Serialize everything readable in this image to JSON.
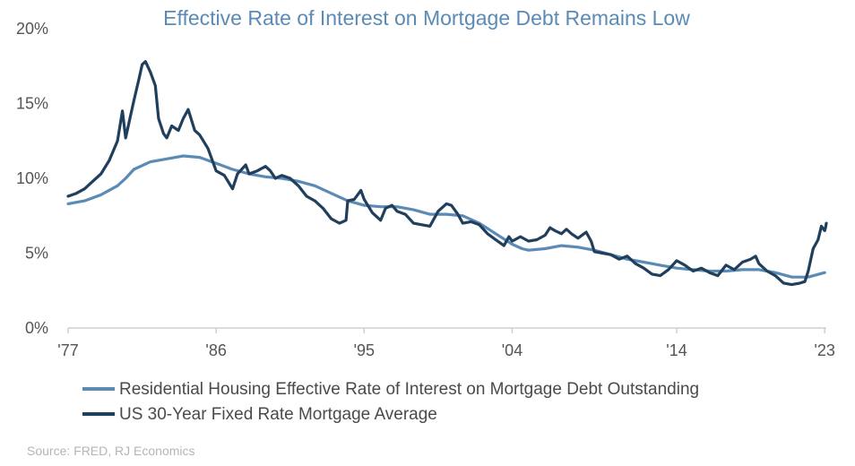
{
  "chart_data": {
    "type": "line",
    "title": "Effective Rate of Interest on Mortgage Debt Remains Low",
    "xlabel": "",
    "ylabel": "",
    "xlim": [
      1977,
      2023.1
    ],
    "ylim": [
      0,
      20
    ],
    "x_ticks": [
      {
        "value": 1977,
        "label": "'77"
      },
      {
        "value": 1986,
        "label": "'86"
      },
      {
        "value": 1995,
        "label": "'95"
      },
      {
        "value": 2004,
        "label": "'04"
      },
      {
        "value": 2014,
        "label": "'14"
      },
      {
        "value": 2023,
        "label": "'23"
      }
    ],
    "y_ticks": [
      {
        "value": 0,
        "label": "0%"
      },
      {
        "value": 5,
        "label": "5%"
      },
      {
        "value": 10,
        "label": "10%"
      },
      {
        "value": 15,
        "label": "15%"
      },
      {
        "value": 20,
        "label": "20%"
      }
    ],
    "grid": false,
    "legend_position": "bottom-left",
    "series": [
      {
        "name": "Residential Housing Effective Rate of Interest on Mortgage Debt Outstanding",
        "color": "#5b8bb5",
        "points": [
          [
            1977,
            8.3
          ],
          [
            1978,
            8.5
          ],
          [
            1979,
            8.9
          ],
          [
            1980,
            9.5
          ],
          [
            1980.5,
            10.0
          ],
          [
            1981,
            10.6
          ],
          [
            1982,
            11.1
          ],
          [
            1983,
            11.3
          ],
          [
            1984,
            11.5
          ],
          [
            1985,
            11.4
          ],
          [
            1986,
            11.0
          ],
          [
            1987,
            10.6
          ],
          [
            1988,
            10.3
          ],
          [
            1989,
            10.1
          ],
          [
            1990,
            10.0
          ],
          [
            1991,
            9.8
          ],
          [
            1992,
            9.5
          ],
          [
            1993,
            9.0
          ],
          [
            1994,
            8.5
          ],
          [
            1995,
            8.2
          ],
          [
            1996,
            8.1
          ],
          [
            1997,
            8.1
          ],
          [
            1998,
            7.9
          ],
          [
            1999,
            7.6
          ],
          [
            2000,
            7.6
          ],
          [
            2001,
            7.5
          ],
          [
            2002,
            7.0
          ],
          [
            2003,
            6.3
          ],
          [
            2004,
            5.6
          ],
          [
            2004.6,
            5.3
          ],
          [
            2005,
            5.2
          ],
          [
            2006,
            5.3
          ],
          [
            2007,
            5.5
          ],
          [
            2008,
            5.4
          ],
          [
            2009,
            5.2
          ],
          [
            2010,
            4.9
          ],
          [
            2011,
            4.6
          ],
          [
            2012,
            4.4
          ],
          [
            2013,
            4.2
          ],
          [
            2014,
            4.0
          ],
          [
            2015,
            3.9
          ],
          [
            2016,
            3.8
          ],
          [
            2017,
            3.8
          ],
          [
            2018,
            3.9
          ],
          [
            2019,
            3.9
          ],
          [
            2020,
            3.7
          ],
          [
            2021,
            3.4
          ],
          [
            2022,
            3.4
          ],
          [
            2023,
            3.7
          ]
        ]
      },
      {
        "name": "US 30-Year Fixed Rate Mortgage Average",
        "color": "#203f5c",
        "points": [
          [
            1977,
            8.8
          ],
          [
            1977.5,
            9.0
          ],
          [
            1978,
            9.3
          ],
          [
            1978.5,
            9.8
          ],
          [
            1979,
            10.3
          ],
          [
            1979.5,
            11.2
          ],
          [
            1980,
            12.5
          ],
          [
            1980.3,
            14.5
          ],
          [
            1980.5,
            12.7
          ],
          [
            1980.8,
            14.2
          ],
          [
            1981,
            15.2
          ],
          [
            1981.3,
            16.6
          ],
          [
            1981.5,
            17.6
          ],
          [
            1981.7,
            17.8
          ],
          [
            1982,
            17.1
          ],
          [
            1982.3,
            16.2
          ],
          [
            1982.5,
            14.0
          ],
          [
            1982.8,
            13.0
          ],
          [
            1983,
            12.7
          ],
          [
            1983.3,
            13.5
          ],
          [
            1983.7,
            13.2
          ],
          [
            1984,
            14.0
          ],
          [
            1984.3,
            14.6
          ],
          [
            1984.7,
            13.2
          ],
          [
            1985,
            12.9
          ],
          [
            1985.5,
            12.0
          ],
          [
            1986,
            10.5
          ],
          [
            1986.5,
            10.2
          ],
          [
            1987,
            9.3
          ],
          [
            1987.3,
            10.3
          ],
          [
            1987.8,
            10.9
          ],
          [
            1988,
            10.3
          ],
          [
            1988.5,
            10.5
          ],
          [
            1989,
            10.8
          ],
          [
            1989.3,
            10.5
          ],
          [
            1989.6,
            10.0
          ],
          [
            1990,
            10.2
          ],
          [
            1990.5,
            10.0
          ],
          [
            1991,
            9.5
          ],
          [
            1991.5,
            8.8
          ],
          [
            1992,
            8.5
          ],
          [
            1992.5,
            8.0
          ],
          [
            1993,
            7.3
          ],
          [
            1993.5,
            7.0
          ],
          [
            1993.9,
            7.2
          ],
          [
            1994,
            8.5
          ],
          [
            1994.4,
            8.6
          ],
          [
            1994.8,
            9.2
          ],
          [
            1995,
            8.6
          ],
          [
            1995.5,
            7.7
          ],
          [
            1996,
            7.2
          ],
          [
            1996.3,
            8.0
          ],
          [
            1996.7,
            8.2
          ],
          [
            1997,
            7.8
          ],
          [
            1997.5,
            7.6
          ],
          [
            1998,
            7.0
          ],
          [
            1998.5,
            6.9
          ],
          [
            1999,
            6.8
          ],
          [
            1999.5,
            7.8
          ],
          [
            2000,
            8.3
          ],
          [
            2000.3,
            8.2
          ],
          [
            2000.7,
            7.6
          ],
          [
            2001,
            7.0
          ],
          [
            2001.5,
            7.1
          ],
          [
            2002,
            6.9
          ],
          [
            2002.5,
            6.3
          ],
          [
            2003,
            5.9
          ],
          [
            2003.5,
            5.5
          ],
          [
            2003.8,
            6.1
          ],
          [
            2004,
            5.8
          ],
          [
            2004.5,
            6.1
          ],
          [
            2005,
            5.8
          ],
          [
            2005.5,
            5.9
          ],
          [
            2006,
            6.2
          ],
          [
            2006.3,
            6.7
          ],
          [
            2006.6,
            6.5
          ],
          [
            2007,
            6.3
          ],
          [
            2007.3,
            6.6
          ],
          [
            2007.6,
            6.3
          ],
          [
            2008,
            6.0
          ],
          [
            2008.5,
            6.4
          ],
          [
            2008.8,
            5.8
          ],
          [
            2009,
            5.1
          ],
          [
            2009.5,
            5.0
          ],
          [
            2010,
            4.9
          ],
          [
            2010.5,
            4.6
          ],
          [
            2011,
            4.8
          ],
          [
            2011.5,
            4.3
          ],
          [
            2012,
            4.0
          ],
          [
            2012.5,
            3.6
          ],
          [
            2013,
            3.5
          ],
          [
            2013.5,
            3.9
          ],
          [
            2014,
            4.5
          ],
          [
            2014.5,
            4.2
          ],
          [
            2015,
            3.8
          ],
          [
            2015.5,
            4.0
          ],
          [
            2016,
            3.7
          ],
          [
            2016.5,
            3.5
          ],
          [
            2017,
            4.2
          ],
          [
            2017.5,
            3.9
          ],
          [
            2018,
            4.4
          ],
          [
            2018.5,
            4.6
          ],
          [
            2018.8,
            4.8
          ],
          [
            2019,
            4.3
          ],
          [
            2019.5,
            3.8
          ],
          [
            2020,
            3.5
          ],
          [
            2020.5,
            3.0
          ],
          [
            2021,
            2.9
          ],
          [
            2021.5,
            3.0
          ],
          [
            2021.8,
            3.1
          ],
          [
            2022,
            3.8
          ],
          [
            2022.3,
            5.3
          ],
          [
            2022.6,
            5.9
          ],
          [
            2022.8,
            6.8
          ],
          [
            2023,
            6.5
          ],
          [
            2023.05,
            6.7
          ],
          [
            2023.1,
            7.0
          ]
        ]
      }
    ],
    "source": "Source: FRED, RJ Economics"
  }
}
